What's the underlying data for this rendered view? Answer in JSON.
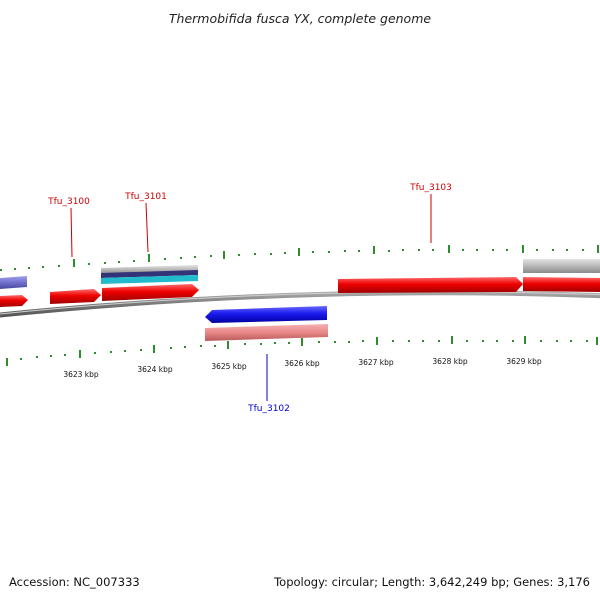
{
  "title": "Thermobifida fusca YX, complete genome",
  "footer": {
    "accession": "Accession: NC_007333",
    "summary": "Topology: circular; Length: 3,642,249 bp; Genes: 3,176"
  },
  "axis": {
    "unit": "kbp",
    "tick_labels": [
      "3623 kbp",
      "3624 kbp",
      "3625 kbp",
      "3626 kbp",
      "3627 kbp",
      "3628 kbp",
      "3629 kbp"
    ]
  },
  "gene_labels": [
    {
      "name": "Tfu_3100",
      "strand": "forward",
      "color": "#cc0000"
    },
    {
      "name": "Tfu_3101",
      "strand": "forward",
      "color": "#cc0000"
    },
    {
      "name": "Tfu_3103",
      "strand": "forward",
      "color": "#cc0000"
    },
    {
      "name": "Tfu_3102",
      "strand": "reverse",
      "color": "#0000cc"
    }
  ],
  "colors": {
    "forward_cds": "#ee0000",
    "reverse_cds": "#1a1aee",
    "forward_label": "#cc0000",
    "reverse_label": "#0000cc",
    "backbone": "#777777",
    "tick": "#2e8b2e",
    "light_red_feature": "#e88888",
    "grey_feature": "#b8b8b8",
    "navy_feature": "#33337a",
    "cyan_feature": "#22bbcc",
    "lavender_feature": "#7070cc"
  }
}
